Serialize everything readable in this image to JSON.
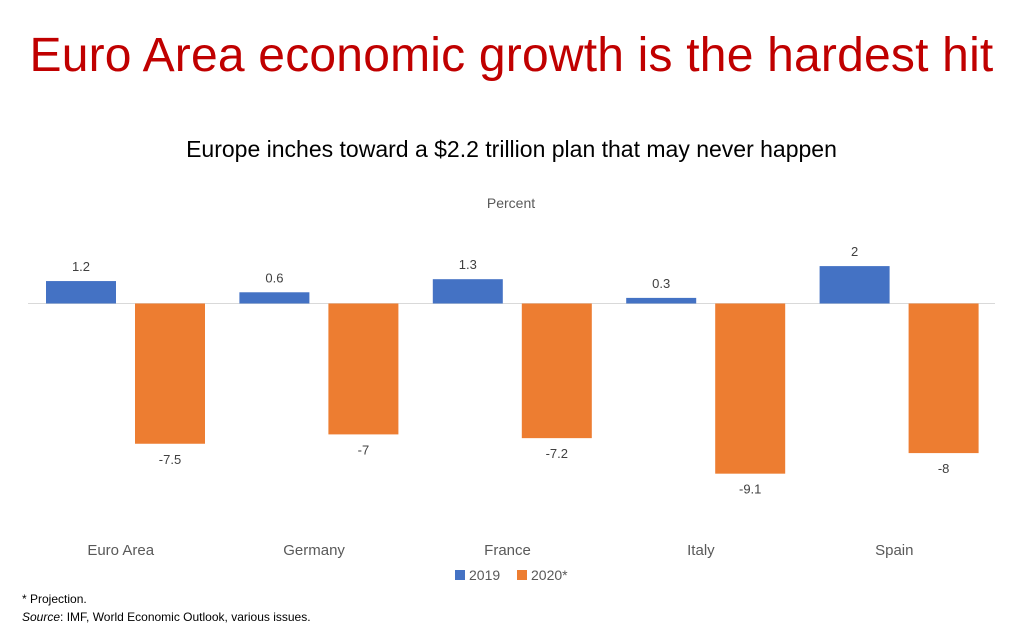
{
  "header": {
    "title": "Euro Area economic growth is the hardest hit",
    "subtitle": "Europe inches toward a $2.2 trillion plan that may never happen"
  },
  "chart_data": {
    "type": "bar",
    "ylabel": "Percent",
    "categories": [
      "Euro Area",
      "Germany",
      "France",
      "Italy",
      "Spain"
    ],
    "series": [
      {
        "name": "2019",
        "color": "#4472c4",
        "values": [
          1.2,
          0.6,
          1.3,
          0.3,
          2
        ]
      },
      {
        "name": "2020*",
        "color": "#ed7d31",
        "values": [
          -7.5,
          -7,
          -7.2,
          -9.1,
          -8
        ]
      }
    ],
    "ylim": [
      -10,
      3
    ],
    "grid": false,
    "legend": "bottom"
  },
  "footnotes": {
    "projection": "* Projection.",
    "source_label": "Source",
    "source_text": ": IMF, World Economic Outlook, various issues."
  }
}
